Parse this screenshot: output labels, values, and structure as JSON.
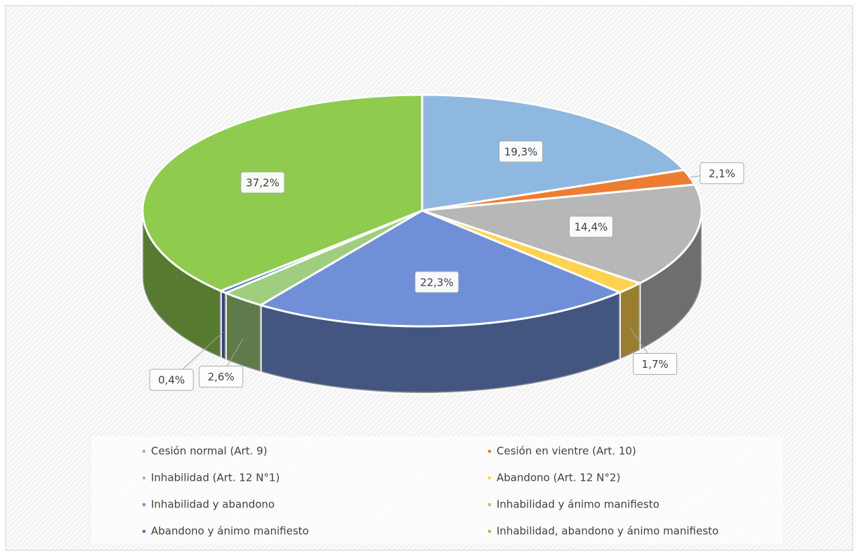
{
  "chart_data": {
    "type": "pie",
    "style": "3d",
    "categories": [
      "Cesión normal (Art. 9)",
      "Cesión en vientre (Art. 10)",
      "Inhabilidad (Art. 12 N°1)",
      "Abandono (Art. 12 N°2)",
      "Inhabilidad y abandono",
      "Inhabilidad y ánimo manifiesto",
      "Abandono y ánimo manifiesto",
      "Inhabilidad, abandono y ánimo manifiesto"
    ],
    "values": [
      19.3,
      2.1,
      14.4,
      1.7,
      22.3,
      2.6,
      0.4,
      37.2
    ],
    "value_labels": [
      "19,3%",
      "2,1%",
      "14,4%",
      "1,7%",
      "22,3%",
      "2,6%",
      "0,4%",
      "37,2%"
    ],
    "colors": [
      "#8fb8e0",
      "#ed7d31",
      "#b7b7b7",
      "#ffd34f",
      "#6f8fd6",
      "#9fce7e",
      "#4a76c0",
      "#8fcb4f"
    ],
    "legend": "bottom"
  }
}
